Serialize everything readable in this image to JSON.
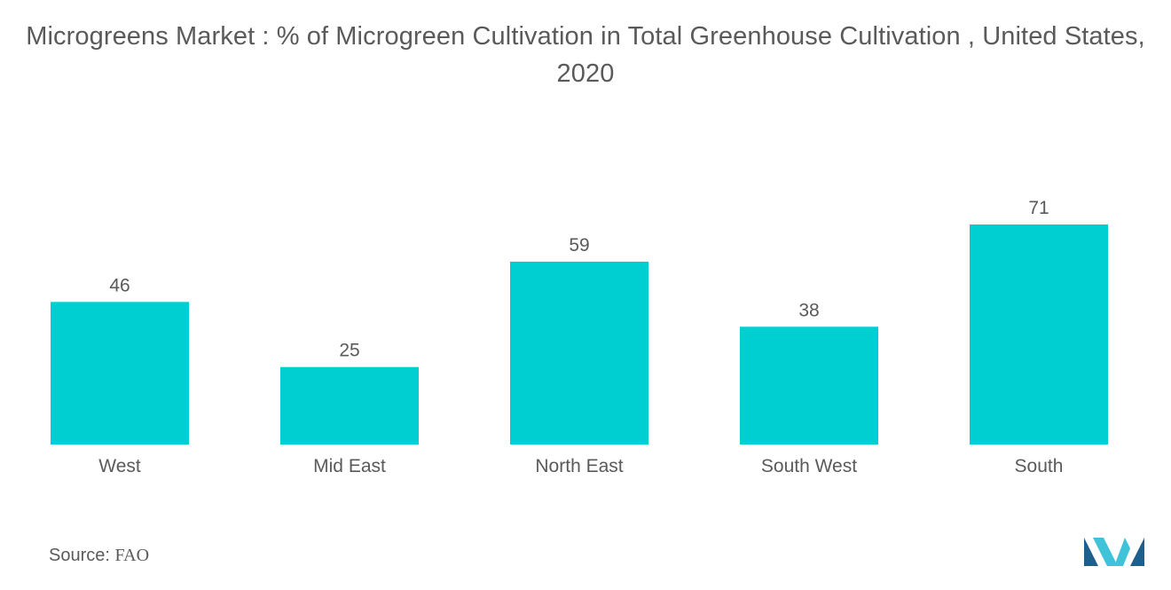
{
  "chart_data": {
    "type": "bar",
    "title": "Microgreens Market : % of Microgreen Cultivation in Total Greenhouse Cultivation , United States, 2020",
    "categories": [
      "West",
      "Mid East",
      "North East",
      "South West",
      "South"
    ],
    "values": [
      46,
      25,
      59,
      38,
      71
    ],
    "xlabel": "",
    "ylabel": "",
    "ylim": [
      0,
      71
    ],
    "grid": false,
    "bar_color": "#00CFD1",
    "data_labels": true
  },
  "source": {
    "label": "Source:",
    "value": "FAO"
  },
  "colors": {
    "text": "#5a5a5a",
    "bar": "#00CFD1",
    "logo_dark": "#1f5f8b",
    "logo_light": "#3ec3d8"
  },
  "logo": {
    "icon": "mordor-intelligence-logo-icon"
  }
}
